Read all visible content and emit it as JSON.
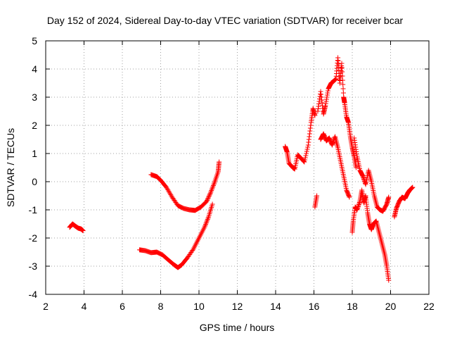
{
  "chart_data": {
    "type": "scatter",
    "title": "Day 152 of 2024, Sidereal Day-to-day VTEC variation (SDTVAR) for receiver bcar",
    "xlabel": "GPS time / hours",
    "ylabel": "SDTVAR / TECUs",
    "xlim": [
      2,
      22
    ],
    "ylim": [
      -4,
      5
    ],
    "xticks": [
      "2",
      "4",
      "6",
      "8",
      "10",
      "12",
      "14",
      "16",
      "18",
      "20",
      "22"
    ],
    "yticks": [
      "-4",
      "-3",
      "-2",
      "-1",
      "0",
      "1",
      "2",
      "3",
      "4",
      "5"
    ],
    "grid": true,
    "marker": "+",
    "series": [
      {
        "name": "SDTVAR",
        "color": "#ff0000",
        "segments": [
          [
            [
              3.25,
              -1.62
            ],
            [
              3.4,
              -1.5
            ],
            [
              3.55,
              -1.58
            ],
            [
              3.7,
              -1.65
            ],
            [
              3.85,
              -1.68
            ],
            [
              3.95,
              -1.74
            ]
          ],
          [
            [
              7.5,
              0.25
            ],
            [
              7.8,
              0.18
            ],
            [
              8.0,
              0.05
            ],
            [
              8.3,
              -0.2
            ],
            [
              8.6,
              -0.55
            ],
            [
              8.9,
              -0.85
            ],
            [
              9.2,
              -0.95
            ],
            [
              9.5,
              -1.0
            ],
            [
              9.8,
              -1.02
            ],
            [
              10.1,
              -0.9
            ],
            [
              10.4,
              -0.7
            ],
            [
              10.6,
              -0.4
            ],
            [
              10.8,
              -0.05
            ],
            [
              11.0,
              0.35
            ],
            [
              11.05,
              0.7
            ]
          ],
          [
            [
              6.9,
              -2.42
            ],
            [
              7.2,
              -2.45
            ],
            [
              7.5,
              -2.52
            ],
            [
              7.8,
              -2.5
            ],
            [
              8.1,
              -2.6
            ],
            [
              8.4,
              -2.78
            ],
            [
              8.7,
              -2.95
            ],
            [
              8.9,
              -3.05
            ],
            [
              9.1,
              -2.95
            ],
            [
              9.4,
              -2.7
            ],
            [
              9.7,
              -2.4
            ],
            [
              10.0,
              -2.0
            ],
            [
              10.3,
              -1.6
            ],
            [
              10.5,
              -1.25
            ],
            [
              10.7,
              -0.8
            ]
          ],
          [
            [
              14.5,
              1.25
            ],
            [
              14.6,
              1.05
            ],
            [
              14.7,
              0.65
            ],
            [
              14.9,
              0.5
            ],
            [
              15.0,
              0.45
            ],
            [
              15.15,
              0.95
            ],
            [
              15.3,
              0.85
            ],
            [
              15.5,
              0.7
            ],
            [
              15.7,
              1.3
            ],
            [
              15.85,
              2.1
            ],
            [
              15.95,
              2.6
            ],
            [
              16.05,
              2.35
            ]
          ],
          [
            [
              16.05,
              -0.9
            ],
            [
              16.15,
              -0.5
            ]
          ],
          [
            [
              16.2,
              2.5
            ],
            [
              16.35,
              3.2
            ],
            [
              16.5,
              2.4
            ],
            [
              16.6,
              2.7
            ],
            [
              16.75,
              3.3
            ],
            [
              16.9,
              3.5
            ],
            [
              17.0,
              3.55
            ],
            [
              17.15,
              3.65
            ],
            [
              17.25,
              4.4
            ],
            [
              17.35,
              3.5
            ],
            [
              17.45,
              4.2
            ],
            [
              17.55,
              3.0
            ],
            [
              17.6,
              2.8
            ],
            [
              17.7,
              2.3
            ],
            [
              17.8,
              2.1
            ],
            [
              17.9,
              1.6
            ],
            [
              18.0,
              1.2
            ],
            [
              18.1,
              0.9
            ],
            [
              18.2,
              0.5
            ]
          ],
          [
            [
              16.35,
              1.5
            ],
            [
              16.5,
              1.7
            ],
            [
              16.65,
              1.45
            ],
            [
              16.8,
              1.55
            ],
            [
              16.95,
              1.3
            ],
            [
              17.1,
              1.6
            ],
            [
              17.25,
              1.2
            ],
            [
              17.4,
              0.7
            ],
            [
              17.55,
              0.2
            ],
            [
              17.7,
              -0.3
            ],
            [
              17.85,
              -0.55
            ]
          ],
          [
            [
              18.0,
              -1.8
            ],
            [
              18.05,
              -1.4
            ],
            [
              18.15,
              -0.9
            ],
            [
              18.25,
              -1.0
            ],
            [
              18.4,
              -0.7
            ],
            [
              18.5,
              -0.3
            ],
            [
              18.6,
              -0.75
            ],
            [
              18.7,
              -0.5
            ],
            [
              18.8,
              -1.1
            ],
            [
              18.9,
              -1.5
            ],
            [
              19.0,
              -1.7
            ],
            [
              19.1,
              -1.5
            ],
            [
              19.25,
              -1.4
            ],
            [
              19.4,
              -1.8
            ],
            [
              19.55,
              -2.2
            ],
            [
              19.7,
              -2.6
            ],
            [
              19.8,
              -3.0
            ],
            [
              19.9,
              -3.5
            ]
          ],
          [
            [
              18.1,
              1.55
            ],
            [
              18.25,
              0.9
            ],
            [
              18.4,
              0.4
            ],
            [
              18.55,
              0.2
            ],
            [
              18.7,
              -0.1
            ],
            [
              18.85,
              0.4
            ],
            [
              19.0,
              0.0
            ],
            [
              19.15,
              -0.5
            ],
            [
              19.3,
              -0.9
            ],
            [
              19.45,
              -1.0
            ],
            [
              19.6,
              -1.05
            ],
            [
              19.8,
              -0.8
            ],
            [
              19.9,
              -0.55
            ]
          ],
          [
            [
              20.2,
              -1.25
            ],
            [
              20.3,
              -0.95
            ],
            [
              20.45,
              -0.7
            ],
            [
              20.6,
              -0.55
            ],
            [
              20.75,
              -0.6
            ],
            [
              20.9,
              -0.4
            ],
            [
              21.0,
              -0.3
            ],
            [
              21.15,
              -0.2
            ]
          ]
        ]
      }
    ]
  }
}
